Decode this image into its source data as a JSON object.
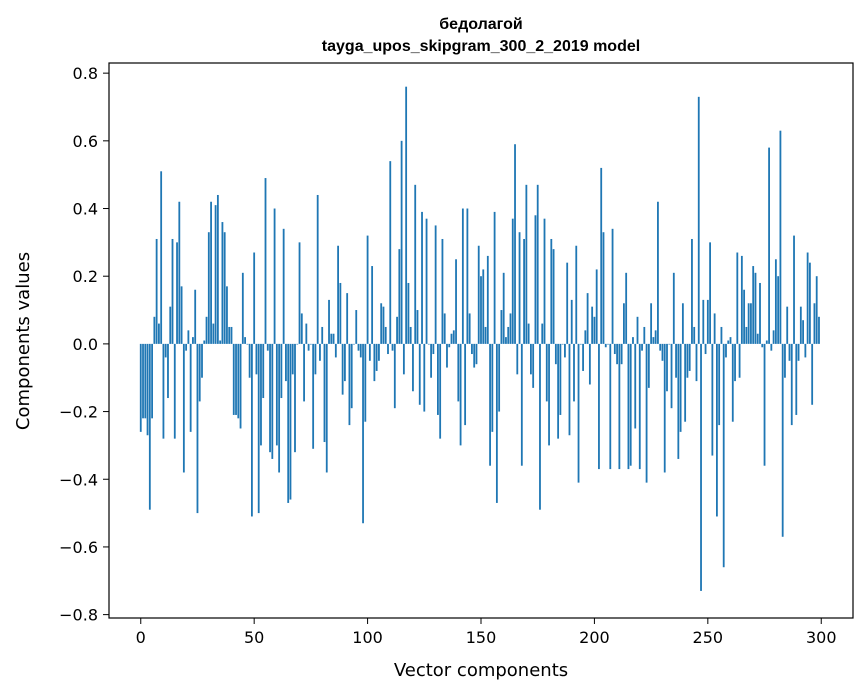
{
  "chart_data": {
    "type": "bar",
    "title": "бедолагой",
    "subtitle": "tayga_upos_skipgram_300_2_2019 model",
    "xlabel": "Vector components",
    "ylabel": "Components values",
    "xlim": [
      -14,
      314
    ],
    "ylim": [
      -0.81,
      0.83
    ],
    "xticks": [
      0,
      50,
      100,
      150,
      200,
      250,
      300
    ],
    "yticks": [
      -0.8,
      -0.6,
      -0.4,
      -0.2,
      0.0,
      0.2,
      0.4,
      0.6,
      0.8
    ],
    "xtick_labels": [
      "0",
      "50",
      "100",
      "150",
      "200",
      "250",
      "300"
    ],
    "ytick_labels": [
      "−0.8",
      "−0.6",
      "−0.4",
      "−0.2",
      "0.0",
      "0.2",
      "0.4",
      "0.6",
      "0.8"
    ],
    "bar_color": "#1f77b4",
    "values": [
      -0.26,
      -0.22,
      -0.22,
      -0.27,
      -0.49,
      -0.22,
      0.08,
      0.31,
      0.06,
      0.51,
      -0.28,
      -0.04,
      -0.16,
      0.11,
      0.31,
      -0.28,
      0.3,
      0.42,
      0.17,
      -0.38,
      -0.02,
      0.04,
      -0.26,
      0.02,
      0.16,
      -0.5,
      -0.17,
      -0.1,
      0.01,
      0.08,
      0.33,
      0.42,
      0.06,
      0.41,
      0.44,
      0.01,
      0.36,
      0.33,
      0.17,
      0.05,
      0.05,
      -0.21,
      -0.21,
      -0.22,
      -0.25,
      0.21,
      0.02,
      0.0,
      -0.1,
      -0.51,
      0.27,
      -0.09,
      -0.5,
      -0.3,
      -0.16,
      0.49,
      -0.02,
      -0.32,
      -0.34,
      0.4,
      -0.3,
      -0.38,
      -0.16,
      0.34,
      -0.11,
      -0.47,
      -0.46,
      -0.09,
      -0.32,
      0.0,
      0.3,
      0.09,
      -0.17,
      0.06,
      -0.02,
      0.0,
      -0.31,
      -0.09,
      0.44,
      -0.05,
      0.05,
      -0.29,
      -0.38,
      0.13,
      0.03,
      0.03,
      -0.04,
      0.29,
      0.18,
      -0.15,
      -0.11,
      0.15,
      -0.24,
      -0.19,
      0.0,
      0.1,
      -0.02,
      -0.04,
      -0.53,
      -0.23,
      0.32,
      -0.05,
      0.23,
      -0.11,
      -0.08,
      -0.05,
      0.12,
      0.11,
      0.05,
      -0.03,
      0.54,
      -0.02,
      -0.19,
      0.08,
      0.28,
      0.6,
      -0.09,
      0.76,
      0.18,
      0.05,
      -0.14,
      0.47,
      0.1,
      -0.18,
      0.39,
      -0.2,
      0.37,
      0.0,
      -0.1,
      -0.03,
      0.35,
      -0.21,
      -0.28,
      0.31,
      0.09,
      -0.07,
      -0.01,
      0.03,
      0.04,
      0.25,
      -0.17,
      -0.3,
      0.4,
      -0.24,
      0.4,
      0.09,
      -0.03,
      -0.07,
      -0.06,
      0.29,
      0.2,
      0.22,
      0.05,
      0.26,
      -0.36,
      -0.26,
      0.39,
      -0.47,
      -0.2,
      0.1,
      0.21,
      0.02,
      0.05,
      0.09,
      0.37,
      0.59,
      -0.09,
      0.33,
      -0.36,
      0.31,
      0.47,
      0.06,
      -0.09,
      -0.13,
      0.38,
      0.47,
      -0.49,
      0.06,
      0.37,
      -0.17,
      -0.3,
      0.31,
      0.28,
      -0.06,
      -0.28,
      -0.21,
      0.0,
      -0.04,
      0.24,
      -0.27,
      0.13,
      -0.17,
      0.29,
      -0.41,
      0.0,
      -0.08,
      0.04,
      0.15,
      -0.12,
      0.11,
      0.08,
      0.22,
      -0.37,
      0.52,
      0.33,
      -0.01,
      0.0,
      -0.37,
      0.34,
      -0.03,
      -0.06,
      -0.37,
      -0.06,
      0.12,
      0.21,
      -0.37,
      -0.36,
      0.02,
      -0.25,
      0.08,
      -0.37,
      -0.02,
      0.05,
      -0.41,
      -0.13,
      0.12,
      0.02,
      0.04,
      0.42,
      -0.02,
      -0.05,
      -0.38,
      -0.14,
      0.0,
      -0.19,
      0.21,
      -0.1,
      -0.34,
      -0.26,
      0.12,
      -0.23,
      -0.1,
      -0.08,
      0.31,
      0.05,
      -0.11,
      0.73,
      -0.73,
      0.13,
      -0.03,
      0.13,
      0.3,
      -0.33,
      0.09,
      -0.51,
      -0.24,
      0.05,
      -0.66,
      -0.04,
      0.01,
      0.02,
      -0.23,
      -0.11,
      0.27,
      -0.1,
      0.26,
      0.16,
      0.05,
      0.12,
      0.12,
      0.23,
      0.21,
      0.03,
      0.18,
      -0.01,
      -0.36,
      0.01,
      0.58,
      -0.02,
      0.04,
      0.25,
      0.2,
      0.63,
      -0.57,
      -0.1,
      0.11,
      -0.05,
      -0.24,
      0.32,
      -0.21,
      -0.05,
      0.11,
      0.07,
      -0.04,
      0.27,
      0.24,
      -0.18,
      0.12,
      0.2,
      0.08
    ]
  }
}
